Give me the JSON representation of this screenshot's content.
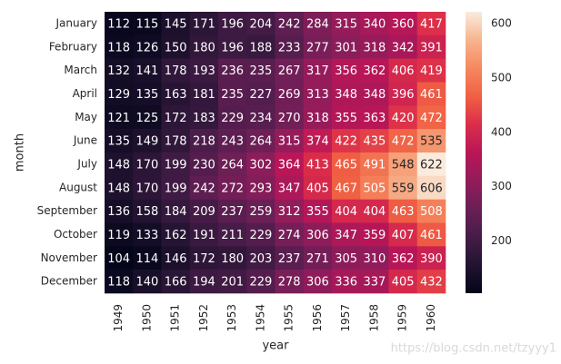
{
  "chart_data": {
    "type": "heatmap",
    "x_label": "year",
    "y_label": "month",
    "x_categories": [
      "1949",
      "1950",
      "1951",
      "1952",
      "1953",
      "1954",
      "1955",
      "1956",
      "1957",
      "1958",
      "1959",
      "1960"
    ],
    "y_categories": [
      "January",
      "February",
      "March",
      "April",
      "May",
      "June",
      "July",
      "August",
      "September",
      "October",
      "November",
      "December"
    ],
    "values": [
      [
        112,
        115,
        145,
        171,
        196,
        204,
        242,
        284,
        315,
        340,
        360,
        417
      ],
      [
        118,
        126,
        150,
        180,
        196,
        188,
        233,
        277,
        301,
        318,
        342,
        391
      ],
      [
        132,
        141,
        178,
        193,
        236,
        235,
        267,
        317,
        356,
        362,
        406,
        419
      ],
      [
        129,
        135,
        163,
        181,
        235,
        227,
        269,
        313,
        348,
        348,
        396,
        461
      ],
      [
        121,
        125,
        172,
        183,
        229,
        234,
        270,
        318,
        355,
        363,
        420,
        472
      ],
      [
        135,
        149,
        178,
        218,
        243,
        264,
        315,
        374,
        422,
        435,
        472,
        535
      ],
      [
        148,
        170,
        199,
        230,
        264,
        302,
        364,
        413,
        465,
        491,
        548,
        622
      ],
      [
        148,
        170,
        199,
        242,
        272,
        293,
        347,
        405,
        467,
        505,
        559,
        606
      ],
      [
        136,
        158,
        184,
        209,
        237,
        259,
        312,
        355,
        404,
        404,
        463,
        508
      ],
      [
        119,
        133,
        162,
        191,
        211,
        229,
        274,
        306,
        347,
        359,
        407,
        461
      ],
      [
        104,
        114,
        146,
        172,
        180,
        203,
        237,
        271,
        305,
        310,
        362,
        390
      ],
      [
        118,
        140,
        166,
        194,
        201,
        229,
        278,
        306,
        336,
        337,
        405,
        432
      ]
    ],
    "colormap": "rocket",
    "clim": [
      104,
      622
    ],
    "cticks": [
      200,
      300,
      400,
      500,
      600
    ],
    "watermark": "https://blog.csdn.net/tzyyy1"
  }
}
